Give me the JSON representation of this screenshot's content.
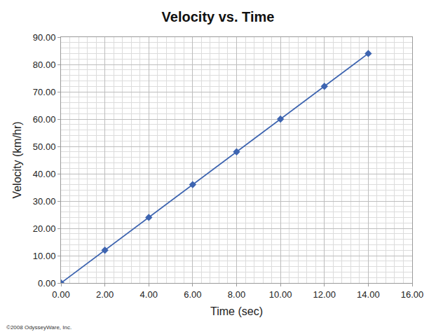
{
  "chart_data": {
    "type": "line",
    "title": "Velocity vs. Time",
    "x_label": "Time (sec)",
    "y_label": "Velocity (km/hr)",
    "x": [
      0,
      2,
      4,
      6,
      8,
      10,
      12,
      14
    ],
    "series": [
      {
        "name": "Velocity",
        "color": "#3d64b0",
        "values": [
          0,
          12,
          24,
          36,
          48,
          60,
          72,
          84
        ]
      }
    ],
    "marker": "diamond",
    "line_style": "solid",
    "grid": true,
    "xlim": [
      0,
      16
    ],
    "xticks": [
      {
        "value": 0,
        "label": "0.00"
      },
      {
        "value": 2,
        "label": "2.00"
      },
      {
        "value": 4,
        "label": "4.00"
      },
      {
        "value": 6,
        "label": "6.00"
      },
      {
        "value": 8,
        "label": "8.00"
      },
      {
        "value": 10,
        "label": "10.00"
      },
      {
        "value": 12,
        "label": "12.00"
      },
      {
        "value": 14,
        "label": "14.00"
      },
      {
        "value": 16,
        "label": "16.00"
      }
    ],
    "ylim": [
      0,
      90
    ],
    "yticks": [
      {
        "value": 0,
        "label": "0.00"
      },
      {
        "value": 10,
        "label": "10.00"
      },
      {
        "value": 20,
        "label": "20.00"
      },
      {
        "value": 30,
        "label": "30.00"
      },
      {
        "value": 40,
        "label": "40.00"
      },
      {
        "value": 50,
        "label": "50.00"
      },
      {
        "value": 60,
        "label": "60.00"
      },
      {
        "value": 70,
        "label": "70.00"
      },
      {
        "value": 80,
        "label": "80.00"
      },
      {
        "value": 90,
        "label": "90.00"
      }
    ],
    "annotations": [
      "©2008 OdysseyWare, Inc."
    ]
  }
}
